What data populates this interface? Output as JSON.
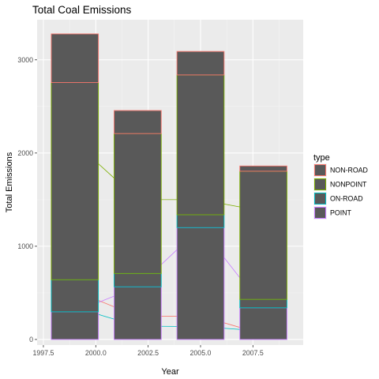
{
  "chart_data": {
    "type": "bar",
    "stacked": true,
    "title": "Total Coal Emissions",
    "xlabel": "Year",
    "ylabel": "Total Emissions",
    "xlim": [
      1997.2,
      2009.9
    ],
    "ylim": [
      -60,
      3430
    ],
    "x_ticks": [
      1997.5,
      2000,
      2002.5,
      2005,
      2007.5
    ],
    "x_tick_labels": [
      "1997.5",
      "2000.0",
      "2002.5",
      "2005.0",
      "2007.5"
    ],
    "y_ticks": [
      0,
      1000,
      2000,
      3000
    ],
    "y_tick_labels": [
      "0",
      "1000",
      "2000",
      "3000"
    ],
    "grid": true,
    "bar_fill": "#595959",
    "bar_width": 2.25,
    "x": [
      1999,
      2002,
      2005,
      2008
    ],
    "series": [
      {
        "name": "POINT",
        "values": [
          297,
          565,
          1200,
          340
        ],
        "color": "#C77CFF"
      },
      {
        "name": "ON-ROAD",
        "values": [
          344,
          143,
          138,
          90
        ],
        "color": "#00BFC4"
      },
      {
        "name": "NONPOINT",
        "values": [
          2115,
          1501,
          1500,
          1375
        ],
        "color": "#7CAE00"
      },
      {
        "name": "NON-ROAD",
        "values": [
          522,
          247,
          252,
          56
        ],
        "color": "#F8766D"
      }
    ],
    "legend": {
      "title": "type",
      "position": "right",
      "order": [
        "NON-ROAD",
        "NONPOINT",
        "ON-ROAD",
        "POINT"
      ]
    },
    "trend_lines": [
      {
        "name": "NON-ROAD",
        "color": "#F8766D",
        "points": [
          [
            1999,
            522
          ],
          [
            2002,
            247
          ],
          [
            2005,
            252
          ],
          [
            2008,
            56
          ]
        ]
      },
      {
        "name": "NONPOINT",
        "color": "#7CAE00",
        "points": [
          [
            1999,
            2115
          ],
          [
            2002,
            1501
          ],
          [
            2005,
            1500
          ],
          [
            2008,
            1375
          ]
        ]
      },
      {
        "name": "ON-ROAD",
        "color": "#00BFC4",
        "points": [
          [
            1999,
            344
          ],
          [
            2002,
            143
          ],
          [
            2005,
            138
          ],
          [
            2008,
            90
          ]
        ]
      },
      {
        "name": "POINT",
        "color": "#C77CFF",
        "points": [
          [
            1999,
            297
          ],
          [
            2002,
            565
          ],
          [
            2005,
            1200
          ],
          [
            2008,
            340
          ]
        ]
      }
    ]
  }
}
